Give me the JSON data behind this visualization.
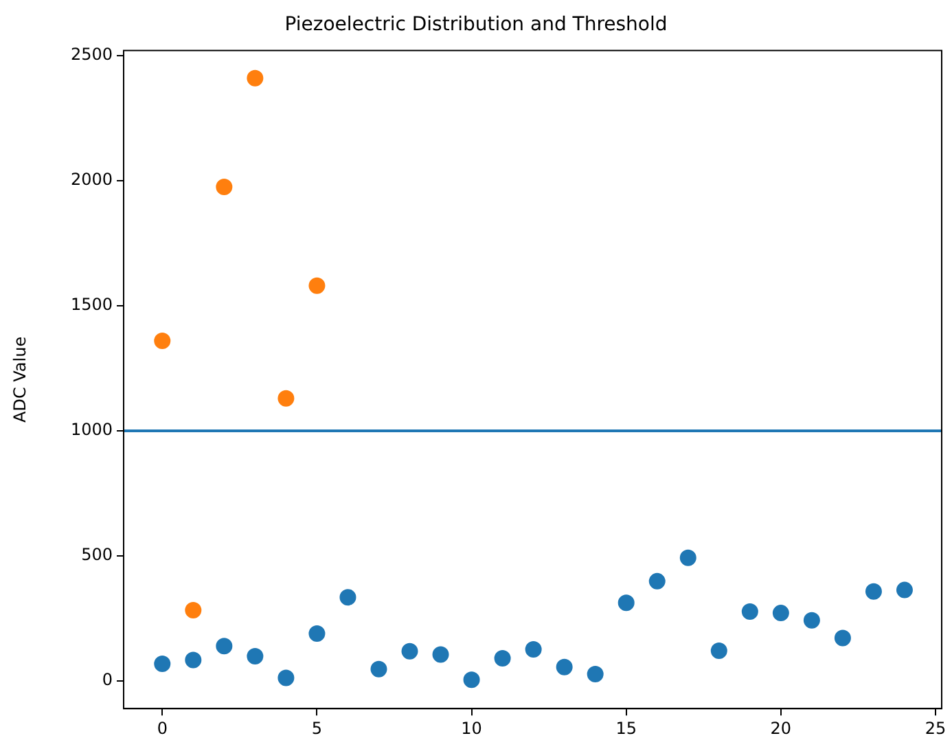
{
  "chart_data": {
    "type": "scatter",
    "title": "Piezoelectric Distribution and Threshold",
    "ylabel": "ADC Value",
    "series": [
      {
        "color": "#1f77b4",
        "x": [
          0,
          1,
          2,
          3,
          4,
          5,
          6,
          7,
          8,
          9,
          10,
          11,
          12,
          13,
          14,
          15,
          16,
          17,
          18,
          19,
          20,
          21,
          22,
          23,
          24
        ],
        "values": [
          69,
          84,
          140,
          99,
          13,
          190,
          335,
          48,
          119,
          106,
          5,
          91,
          127,
          56,
          28,
          313,
          399,
          493,
          121,
          278,
          272,
          243,
          172,
          358,
          364
        ]
      },
      {
        "color": "#ff7f0e",
        "x": [
          0,
          1,
          2,
          3,
          4,
          5
        ],
        "values": [
          1360,
          283,
          1975,
          2410,
          1130,
          1580
        ]
      }
    ],
    "ref_lines": [
      {
        "axis": "y",
        "value": 1000,
        "color": "#1f77b4",
        "line_style": "solid"
      }
    ],
    "xlim": [
      -1.25,
      25.2
    ],
    "xticks": [
      0,
      5,
      10,
      15,
      20,
      25
    ],
    "ylim": [
      -110,
      2520
    ],
    "yticks": [
      0,
      500,
      1000,
      1500,
      2000,
      2500
    ],
    "grid": false,
    "legend": false,
    "marker": "circle"
  }
}
